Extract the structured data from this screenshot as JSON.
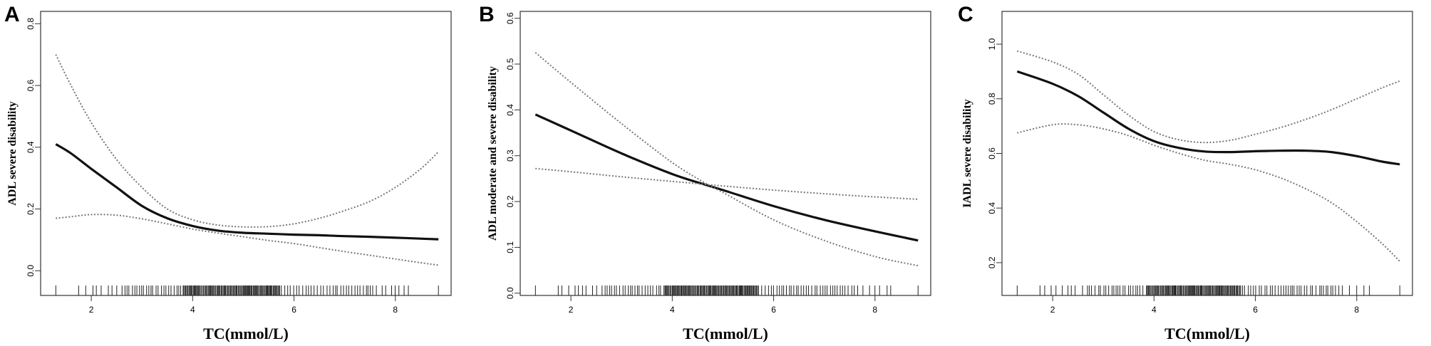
{
  "chart_data": [
    {
      "panel": "A",
      "type": "line",
      "xlabel": "TC(mmol/L)",
      "ylabel": "ADL severe disability",
      "xlim": [
        1.0,
        9.1
      ],
      "ylim": [
        -0.08,
        0.84
      ],
      "xticks": [
        2,
        4,
        6,
        8
      ],
      "yticks": [
        0.0,
        0.2,
        0.4,
        0.6,
        0.8
      ],
      "ytick_labels": [
        "0.0",
        "0.2",
        "0.4",
        "0.6",
        "0.8"
      ],
      "series": [
        {
          "style": "solid",
          "x": [
            1.3,
            1.6,
            2.0,
            2.5,
            3.0,
            3.5,
            4.0,
            4.5,
            5.0,
            5.5,
            6.0,
            6.5,
            7.0,
            7.5,
            8.0,
            8.5,
            8.85
          ],
          "y": [
            0.41,
            0.38,
            0.33,
            0.27,
            0.21,
            0.17,
            0.145,
            0.13,
            0.123,
            0.12,
            0.117,
            0.115,
            0.112,
            0.11,
            0.107,
            0.104,
            0.102
          ]
        },
        {
          "style": "dotted",
          "x": [
            1.3,
            1.6,
            2.0,
            2.5,
            3.0,
            3.5,
            4.0,
            4.5,
            5.0,
            5.5,
            6.0,
            6.5,
            7.0,
            7.5,
            8.0,
            8.5,
            8.85
          ],
          "y": [
            0.7,
            0.6,
            0.48,
            0.36,
            0.27,
            0.2,
            0.165,
            0.148,
            0.142,
            0.143,
            0.152,
            0.17,
            0.195,
            0.225,
            0.27,
            0.33,
            0.385
          ]
        },
        {
          "style": "dotted",
          "x": [
            1.3,
            1.6,
            2.0,
            2.5,
            3.0,
            3.5,
            4.0,
            4.5,
            5.0,
            5.5,
            6.0,
            6.5,
            7.0,
            7.5,
            8.0,
            8.5,
            8.85
          ],
          "y": [
            0.17,
            0.175,
            0.182,
            0.18,
            0.168,
            0.152,
            0.135,
            0.122,
            0.11,
            0.098,
            0.088,
            0.075,
            0.062,
            0.05,
            0.038,
            0.026,
            0.018
          ]
        }
      ],
      "rug": {
        "min": 1.3,
        "max": 8.85,
        "dense_min": 3.8,
        "dense_max": 5.7
      }
    },
    {
      "panel": "B",
      "type": "line",
      "xlabel": "TC(mmol/L)",
      "ylabel": "ADL moderate and severe disability",
      "xlim": [
        1.0,
        9.1
      ],
      "ylim": [
        -0.005,
        0.615
      ],
      "xticks": [
        2,
        4,
        6,
        8
      ],
      "yticks": [
        0.0,
        0.1,
        0.2,
        0.3,
        0.4,
        0.5,
        0.6
      ],
      "ytick_labels": [
        "0.0",
        "0.1",
        "0.2",
        "0.3",
        "0.4",
        "0.5",
        "0.6"
      ],
      "series": [
        {
          "style": "solid",
          "x": [
            1.3,
            2.0,
            3.0,
            4.0,
            4.7,
            5.0,
            6.0,
            7.0,
            8.0,
            8.85
          ],
          "y": [
            0.39,
            0.355,
            0.305,
            0.26,
            0.235,
            0.225,
            0.19,
            0.16,
            0.135,
            0.115
          ]
        },
        {
          "style": "dotted",
          "x": [
            1.3,
            2.0,
            3.0,
            4.0,
            4.7,
            5.0,
            6.0,
            7.0,
            8.0,
            8.85
          ],
          "y": [
            0.525,
            0.46,
            0.37,
            0.285,
            0.237,
            0.22,
            0.16,
            0.115,
            0.08,
            0.06
          ]
        },
        {
          "style": "dotted",
          "x": [
            1.3,
            2.0,
            3.0,
            4.0,
            4.7,
            5.0,
            6.0,
            7.0,
            8.0,
            8.85
          ],
          "y": [
            0.272,
            0.265,
            0.254,
            0.244,
            0.237,
            0.234,
            0.225,
            0.217,
            0.21,
            0.205
          ]
        }
      ],
      "rug": {
        "min": 1.3,
        "max": 8.85,
        "dense_min": 3.8,
        "dense_max": 5.7
      }
    },
    {
      "panel": "C",
      "type": "line",
      "xlabel": "TC(mmol/L)",
      "ylabel": "IADL severe disability",
      "xlim": [
        1.0,
        9.1
      ],
      "ylim": [
        0.08,
        1.12
      ],
      "xticks": [
        2,
        4,
        6,
        8
      ],
      "yticks": [
        0.2,
        0.4,
        0.6,
        0.8,
        1.0
      ],
      "ytick_labels": [
        "0.2",
        "0.4",
        "0.6",
        "0.8",
        "1.0"
      ],
      "series": [
        {
          "style": "solid",
          "x": [
            1.3,
            2.0,
            2.5,
            3.0,
            3.5,
            4.0,
            4.5,
            5.0,
            5.5,
            6.0,
            6.5,
            7.0,
            7.5,
            8.0,
            8.5,
            8.85
          ],
          "y": [
            0.9,
            0.855,
            0.81,
            0.75,
            0.69,
            0.645,
            0.62,
            0.607,
            0.605,
            0.608,
            0.61,
            0.61,
            0.605,
            0.59,
            0.57,
            0.56
          ]
        },
        {
          "style": "dotted",
          "x": [
            1.3,
            2.0,
            2.5,
            3.0,
            3.5,
            4.0,
            4.5,
            5.0,
            5.5,
            6.0,
            6.5,
            7.0,
            7.5,
            8.0,
            8.5,
            8.85
          ],
          "y": [
            0.975,
            0.935,
            0.89,
            0.815,
            0.74,
            0.68,
            0.65,
            0.64,
            0.648,
            0.67,
            0.695,
            0.725,
            0.76,
            0.8,
            0.84,
            0.865
          ]
        },
        {
          "style": "dotted",
          "x": [
            1.3,
            2.0,
            2.5,
            3.0,
            3.5,
            4.0,
            4.5,
            5.0,
            5.5,
            6.0,
            6.5,
            7.0,
            7.5,
            8.0,
            8.5,
            8.85
          ],
          "y": [
            0.675,
            0.705,
            0.705,
            0.69,
            0.665,
            0.63,
            0.6,
            0.575,
            0.56,
            0.54,
            0.51,
            0.47,
            0.42,
            0.35,
            0.27,
            0.205
          ]
        }
      ],
      "rug": {
        "min": 1.3,
        "max": 8.85,
        "dense_min": 3.8,
        "dense_max": 5.7
      }
    }
  ]
}
